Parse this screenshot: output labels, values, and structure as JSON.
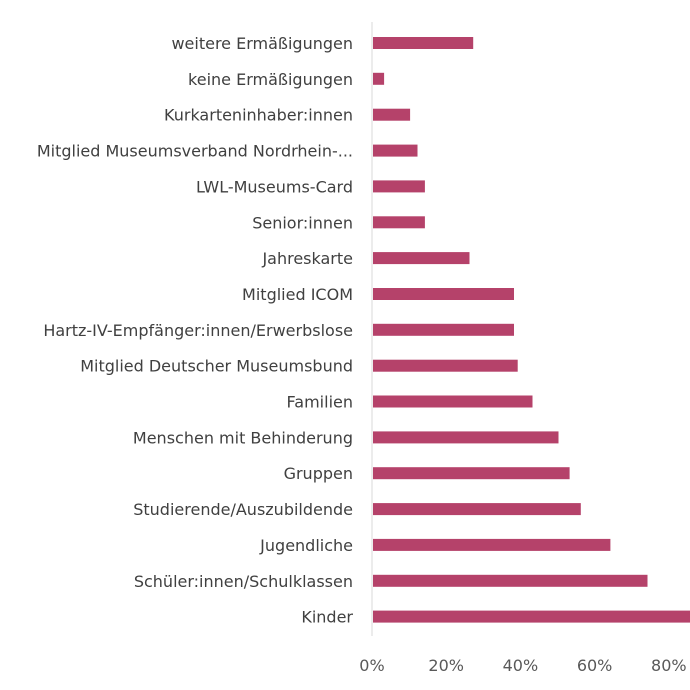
{
  "chart_data": {
    "type": "bar",
    "orientation": "horizontal",
    "categories": [
      "weitere Ermäßigungen",
      "keine Ermäßigungen",
      "Kurkarteninhaber:innen",
      "Mitglied Museumsverband Nordrhein-...",
      "LWL-Museums-Card",
      "Senior:innen",
      "Jahreskarte",
      "Mitglied ICOM",
      "Hartz-IV-Empfänger:innen/Erwerbslose",
      "Mitglied Deutscher Museumsbund",
      "Familien",
      "Menschen mit Behinderung",
      "Gruppen",
      "Studierende/Auszubildende",
      "Jugendliche",
      "Schüler:innen/Schulklassen",
      "Kinder"
    ],
    "values": [
      27,
      3,
      10,
      12,
      14,
      14,
      26,
      38,
      38,
      39,
      43,
      50,
      53,
      56,
      64,
      74,
      86
    ],
    "value_unit": "%",
    "xlim": [
      0,
      85
    ],
    "xticks": [
      0,
      20,
      40,
      60,
      80
    ],
    "xtick_labels": [
      "0%",
      "20%",
      "40%",
      "60%",
      "80%"
    ],
    "bar_color": "#B5426A",
    "grid": false,
    "legend": "none",
    "title": "",
    "xlabel": "",
    "ylabel": ""
  }
}
